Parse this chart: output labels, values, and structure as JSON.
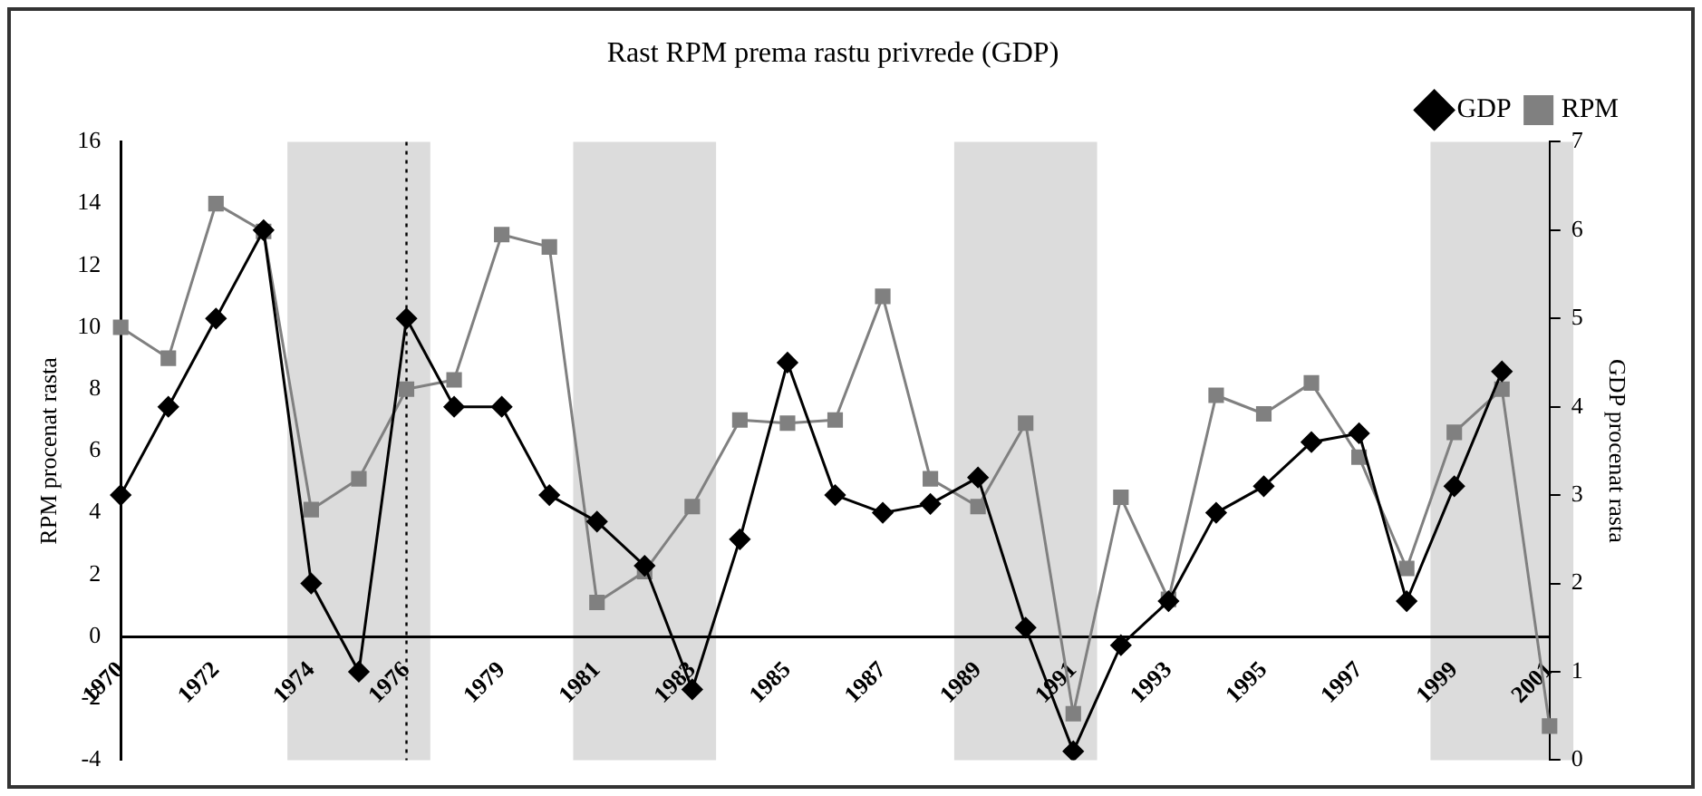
{
  "chart_data": {
    "type": "line",
    "title": "Rast RPM prema rastu privrede (GDP)",
    "ylabel": "RPM procenat rasta",
    "y2label": "GDP procenat rasta",
    "categories": [
      "1970",
      null,
      "1972",
      null,
      "1974",
      null,
      "1976",
      null,
      "1979",
      null,
      "1981",
      null,
      "1983",
      null,
      "1985",
      null,
      "1987",
      null,
      "1989",
      null,
      "1991",
      null,
      "1993",
      null,
      "1995",
      null,
      "1997",
      null,
      "1999",
      null,
      "2001"
    ],
    "series": [
      {
        "name": "RPM",
        "color": "#808080",
        "marker": "square",
        "values": [
          10.0,
          9.0,
          14.0,
          13.1,
          4.1,
          5.1,
          8.0,
          8.3,
          13.0,
          12.6,
          1.1,
          2.1,
          4.2,
          7.0,
          6.9,
          7.0,
          11.0,
          5.1,
          4.2,
          6.9,
          -2.5,
          4.5,
          1.2,
          7.8,
          7.2,
          8.2,
          5.8,
          2.2,
          6.6,
          8.0,
          -2.9
        ]
      },
      {
        "name": "GDP",
        "color": "#000000",
        "marker": "diamond",
        "axis": "y2",
        "values": [
          3.0,
          4.0,
          5.0,
          6.0,
          2.0,
          1.0,
          5.0,
          4.0,
          4.0,
          3.0,
          2.7,
          2.2,
          0.8,
          2.5,
          4.5,
          3.0,
          2.8,
          2.9,
          3.2,
          1.5,
          0.1,
          1.3,
          1.8,
          2.8,
          3.1,
          3.6,
          3.7,
          1.8,
          3.1,
          4.4,
          null
        ]
      }
    ],
    "ylim": [
      -4,
      16
    ],
    "yticks": [
      -4,
      -2,
      0,
      2,
      4,
      6,
      8,
      10,
      12,
      14,
      16
    ],
    "y2lim": [
      0,
      7
    ],
    "y2ticks": [
      0,
      1,
      2,
      3,
      4,
      5,
      6,
      7
    ],
    "bands": [
      {
        "axis": "x",
        "from": "1974",
        "to": "1976",
        "color": "#dcdcdc"
      },
      {
        "axis": "x",
        "from": "1981",
        "to": "1983",
        "color": "#dcdcdc"
      },
      {
        "axis": "x",
        "from": "1989",
        "to": "1991",
        "color": "#dcdcdc"
      },
      {
        "axis": "x",
        "from": "1999",
        "to": "2001",
        "color": "#dcdcdc"
      }
    ],
    "ref_lines": [
      {
        "axis": "x",
        "value": "1976",
        "line_style": "dotted",
        "color": "#000000"
      }
    ],
    "legend": "top right",
    "grid": false,
    "line_style": "solid"
  }
}
